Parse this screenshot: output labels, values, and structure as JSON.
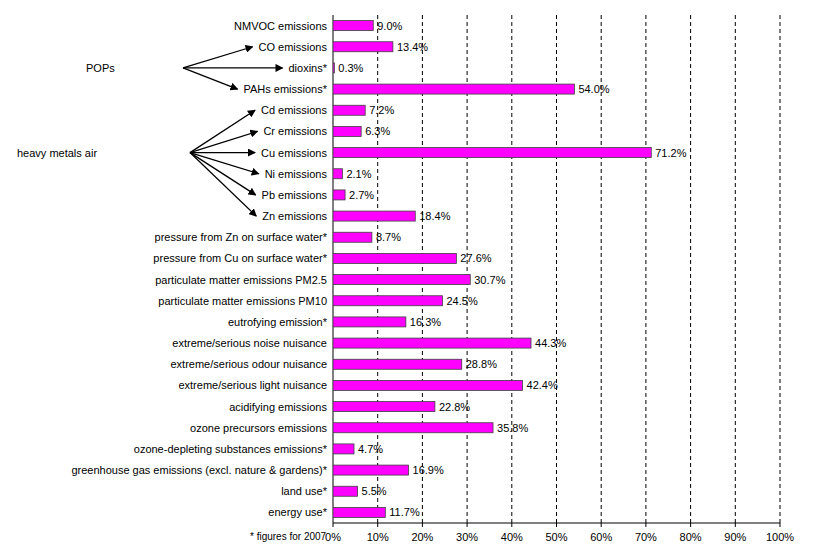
{
  "chart_data": {
    "type": "bar",
    "orientation": "horizontal",
    "categories": [
      "NMVOC emissions",
      "CO emissions",
      "dioxins*",
      "PAHs emissions*",
      "Cd emissions",
      "Cr emissions",
      "Cu emissions",
      "Ni emissions",
      "Pb emissions",
      "Zn emissions",
      "pressure from Zn on surface water*",
      "pressure from Cu on surface water*",
      "particulate matter emissions PM2.5",
      "particulate matter emissions PM10",
      "eutrofying emission*",
      "extreme/serious noise nuisance",
      "extreme/serious odour nuisance",
      "extreme/serious light nuisance",
      "acidifying emissions",
      "ozone precursors emissions",
      "ozone-depleting substances emissions*",
      "greenhouse gas emissions (excl. nature & gardens)*",
      "land use*",
      "energy use*"
    ],
    "values": [
      9.0,
      13.4,
      0.3,
      54.0,
      7.2,
      6.3,
      71.2,
      2.1,
      2.7,
      18.4,
      8.7,
      27.6,
      30.7,
      24.5,
      16.3,
      44.3,
      28.8,
      42.4,
      22.8,
      35.8,
      4.7,
      16.9,
      5.5,
      11.7
    ],
    "value_labels": [
      "9.0%",
      "13.4%",
      "0.3%",
      "54.0%",
      "7.2%",
      "6.3%",
      "71.2%",
      "2.1%",
      "2.7%",
      "18.4%",
      "8.7%",
      "27.6%",
      "30.7%",
      "24.5%",
      "16.3%",
      "44.3%",
      "28.8%",
      "42.4%",
      "22.8%",
      "35.8%",
      "4.7%",
      "16.9%",
      "5.5%",
      "11.7%"
    ],
    "color": "#ff00ff",
    "data_labels": true,
    "grid": true,
    "xlim": [
      0,
      100
    ],
    "xticks": [
      {
        "value": 0,
        "label": "0%"
      },
      {
        "value": 10,
        "label": "10%"
      },
      {
        "value": 20,
        "label": "20%"
      },
      {
        "value": 30,
        "label": "30%"
      },
      {
        "value": 40,
        "label": "40%"
      },
      {
        "value": 50,
        "label": "50%"
      },
      {
        "value": 60,
        "label": "60%"
      },
      {
        "value": 70,
        "label": "70%"
      },
      {
        "value": 80,
        "label": "80%"
      },
      {
        "value": 90,
        "label": "90%"
      },
      {
        "value": 100,
        "label": "100%"
      }
    ],
    "annotations": [
      {
        "text": "POPs",
        "points_to": [
          "CO emissions",
          "dioxins*",
          "PAHs emissions*"
        ]
      },
      {
        "text": "heavy metals air",
        "points_to": [
          "Cd emissions",
          "Cr emissions",
          "Cu emissions",
          "Ni emissions",
          "Pb emissions",
          "Zn emissions"
        ]
      }
    ],
    "footnote": "* figures for 2007"
  }
}
